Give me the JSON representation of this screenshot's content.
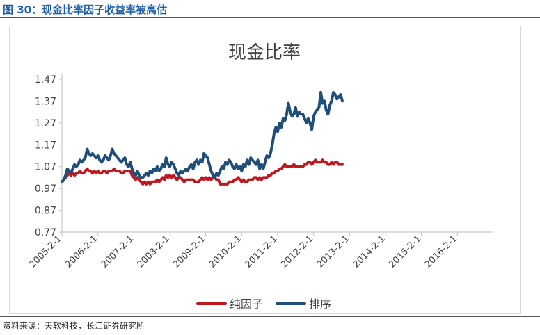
{
  "figure_title": "图 30：现金比率因子收益率被高估",
  "source": "资料来源：天软科技，长江证券研究所",
  "colors": {
    "accent": "#1f5ea8",
    "series_red": "#c0161e",
    "series_blue": "#1f4e79",
    "axis": "#bfbfbf"
  },
  "chart_data": {
    "type": "line",
    "title": "现金比率",
    "xlabel": "",
    "ylabel": "",
    "ylim": [
      0.77,
      1.47
    ],
    "y_ticks": [
      "1.47",
      "1.37",
      "1.27",
      "1.17",
      "1.07",
      "0.97",
      "0.87",
      "0.77"
    ],
    "x_ticks": [
      "2005-2-1",
      "2006-2-1",
      "2007-2-1",
      "2008-2-1",
      "2009-2-1",
      "2010-2-1",
      "2011-2-1",
      "2012-2-1",
      "2013-2-1",
      "2014-2-1",
      "2015-2-1",
      "2016-2-1"
    ],
    "x_start_label": "2005-2-1",
    "grid": false,
    "legend_position": "bottom",
    "series": [
      {
        "name": "纯因子",
        "color": "#c0161e",
        "points": [
          [
            0.0,
            1.0
          ],
          [
            0.05,
            1.01
          ],
          [
            0.1,
            1.02
          ],
          [
            0.15,
            1.03
          ],
          [
            0.2,
            1.04
          ],
          [
            0.25,
            1.03
          ],
          [
            0.3,
            1.04
          ],
          [
            0.35,
            1.03
          ],
          [
            0.4,
            1.04
          ],
          [
            0.45,
            1.04
          ],
          [
            0.5,
            1.05
          ],
          [
            0.55,
            1.04
          ],
          [
            0.6,
            1.04
          ],
          [
            0.65,
            1.05
          ],
          [
            0.7,
            1.06
          ],
          [
            0.75,
            1.05
          ],
          [
            0.8,
            1.05
          ],
          [
            0.85,
            1.04
          ],
          [
            0.9,
            1.05
          ],
          [
            0.95,
            1.04
          ],
          [
            1.0,
            1.05
          ],
          [
            1.05,
            1.04
          ],
          [
            1.1,
            1.04
          ],
          [
            1.15,
            1.05
          ],
          [
            1.2,
            1.05
          ],
          [
            1.25,
            1.04
          ],
          [
            1.3,
            1.05
          ],
          [
            1.35,
            1.05
          ],
          [
            1.4,
            1.05
          ],
          [
            1.45,
            1.06
          ],
          [
            1.5,
            1.05
          ],
          [
            1.55,
            1.05
          ],
          [
            1.6,
            1.05
          ],
          [
            1.65,
            1.04
          ],
          [
            1.7,
            1.04
          ],
          [
            1.75,
            1.05
          ],
          [
            1.8,
            1.05
          ],
          [
            1.85,
            1.05
          ],
          [
            1.9,
            1.05
          ],
          [
            1.95,
            1.03
          ],
          [
            2.0,
            1.02
          ],
          [
            2.05,
            1.01
          ],
          [
            2.1,
            1.02
          ],
          [
            2.15,
            1.01
          ],
          [
            2.2,
            1.0
          ],
          [
            2.25,
            0.99
          ],
          [
            2.3,
            1.0
          ],
          [
            2.35,
            0.99
          ],
          [
            2.4,
            1.0
          ],
          [
            2.45,
            0.99
          ],
          [
            2.5,
            1.0
          ],
          [
            2.55,
            1.0
          ],
          [
            2.6,
            1.0
          ],
          [
            2.65,
            1.01
          ],
          [
            2.7,
            1.0
          ],
          [
            2.75,
            1.01
          ],
          [
            2.8,
            1.02
          ],
          [
            2.85,
            1.01
          ],
          [
            2.9,
            1.03
          ],
          [
            2.95,
            1.02
          ],
          [
            3.0,
            1.03
          ],
          [
            3.05,
            1.02
          ],
          [
            3.1,
            1.03
          ],
          [
            3.15,
            1.02
          ],
          [
            3.2,
            1.01
          ],
          [
            3.25,
            1.02
          ],
          [
            3.3,
            1.02
          ],
          [
            3.35,
            1.01
          ],
          [
            3.4,
            1.0
          ],
          [
            3.45,
            1.01
          ],
          [
            3.5,
            1.01
          ],
          [
            3.55,
            1.01
          ],
          [
            3.6,
            1.01
          ],
          [
            3.65,
            1.01
          ],
          [
            3.7,
            1.0
          ],
          [
            3.75,
            1.0
          ],
          [
            3.8,
            1.0
          ],
          [
            3.85,
            1.01
          ],
          [
            3.9,
            1.02
          ],
          [
            3.95,
            1.01
          ],
          [
            4.0,
            1.02
          ],
          [
            4.05,
            1.01
          ],
          [
            4.1,
            1.02
          ],
          [
            4.15,
            1.01
          ],
          [
            4.2,
            1.02
          ],
          [
            4.25,
            1.02
          ],
          [
            4.3,
            1.01
          ],
          [
            4.35,
            1.01
          ],
          [
            4.4,
            0.99
          ],
          [
            4.45,
            0.99
          ],
          [
            4.5,
            0.99
          ],
          [
            4.55,
            0.99
          ],
          [
            4.6,
            0.99
          ],
          [
            4.65,
            1.0
          ],
          [
            4.7,
            1.0
          ],
          [
            4.75,
            1.0
          ],
          [
            4.8,
            1.01
          ],
          [
            4.85,
            1.01
          ],
          [
            4.9,
            1.02
          ],
          [
            4.95,
            1.01
          ],
          [
            5.0,
            1.0
          ],
          [
            5.05,
            1.01
          ],
          [
            5.1,
            1.0
          ],
          [
            5.15,
            1.0
          ],
          [
            5.2,
            1.01
          ],
          [
            5.25,
            1.01
          ],
          [
            5.3,
            1.01
          ],
          [
            5.35,
            1.02
          ],
          [
            5.4,
            1.02
          ],
          [
            5.45,
            1.01
          ],
          [
            5.5,
            1.02
          ],
          [
            5.55,
            1.01
          ],
          [
            5.6,
            1.02
          ],
          [
            5.65,
            1.02
          ],
          [
            5.7,
            1.02
          ],
          [
            5.75,
            1.03
          ],
          [
            5.8,
            1.03
          ],
          [
            5.85,
            1.04
          ],
          [
            5.9,
            1.04
          ],
          [
            5.95,
            1.05
          ],
          [
            6.0,
            1.05
          ],
          [
            6.05,
            1.06
          ],
          [
            6.1,
            1.06
          ],
          [
            6.15,
            1.07
          ],
          [
            6.2,
            1.08
          ],
          [
            6.25,
            1.07
          ],
          [
            6.3,
            1.07
          ],
          [
            6.35,
            1.07
          ],
          [
            6.4,
            1.07
          ],
          [
            6.45,
            1.08
          ],
          [
            6.5,
            1.07
          ],
          [
            6.55,
            1.07
          ],
          [
            6.6,
            1.07
          ],
          [
            6.65,
            1.07
          ],
          [
            6.7,
            1.07
          ],
          [
            6.75,
            1.08
          ],
          [
            6.8,
            1.08
          ],
          [
            6.85,
            1.09
          ],
          [
            6.9,
            1.09
          ],
          [
            6.95,
            1.08
          ],
          [
            7.0,
            1.09
          ],
          [
            7.05,
            1.1
          ],
          [
            7.1,
            1.09
          ],
          [
            7.15,
            1.09
          ],
          [
            7.2,
            1.09
          ],
          [
            7.25,
            1.1
          ],
          [
            7.3,
            1.09
          ],
          [
            7.35,
            1.09
          ],
          [
            7.4,
            1.08
          ],
          [
            7.45,
            1.08
          ],
          [
            7.5,
            1.09
          ],
          [
            7.55,
            1.08
          ],
          [
            7.6,
            1.09
          ],
          [
            7.65,
            1.09
          ],
          [
            7.7,
            1.08
          ],
          [
            7.75,
            1.08
          ],
          [
            7.8,
            1.08
          ]
        ]
      },
      {
        "name": "排序",
        "color": "#1f4e79",
        "points": [
          [
            0.0,
            1.0
          ],
          [
            0.05,
            1.01
          ],
          [
            0.1,
            1.03
          ],
          [
            0.15,
            1.06
          ],
          [
            0.2,
            1.05
          ],
          [
            0.25,
            1.04
          ],
          [
            0.3,
            1.06
          ],
          [
            0.35,
            1.08
          ],
          [
            0.4,
            1.07
          ],
          [
            0.45,
            1.08
          ],
          [
            0.5,
            1.1
          ],
          [
            0.55,
            1.09
          ],
          [
            0.6,
            1.1
          ],
          [
            0.65,
            1.11
          ],
          [
            0.7,
            1.15
          ],
          [
            0.75,
            1.13
          ],
          [
            0.8,
            1.12
          ],
          [
            0.85,
            1.13
          ],
          [
            0.9,
            1.12
          ],
          [
            0.95,
            1.11
          ],
          [
            1.0,
            1.12
          ],
          [
            1.05,
            1.1
          ],
          [
            1.1,
            1.09
          ],
          [
            1.15,
            1.1
          ],
          [
            1.2,
            1.12
          ],
          [
            1.25,
            1.11
          ],
          [
            1.3,
            1.1
          ],
          [
            1.35,
            1.12
          ],
          [
            1.4,
            1.15
          ],
          [
            1.45,
            1.13
          ],
          [
            1.5,
            1.12
          ],
          [
            1.55,
            1.11
          ],
          [
            1.6,
            1.1
          ],
          [
            1.65,
            1.09
          ],
          [
            1.7,
            1.1
          ],
          [
            1.75,
            1.11
          ],
          [
            1.8,
            1.08
          ],
          [
            1.85,
            1.07
          ],
          [
            1.9,
            1.09
          ],
          [
            1.95,
            1.06
          ],
          [
            2.0,
            1.04
          ],
          [
            2.05,
            1.03
          ],
          [
            2.1,
            1.05
          ],
          [
            2.15,
            1.03
          ],
          [
            2.2,
            1.02
          ],
          [
            2.25,
            1.02
          ],
          [
            2.3,
            1.03
          ],
          [
            2.35,
            1.04
          ],
          [
            2.4,
            1.03
          ],
          [
            2.45,
            1.05
          ],
          [
            2.5,
            1.04
          ],
          [
            2.55,
            1.06
          ],
          [
            2.6,
            1.05
          ],
          [
            2.65,
            1.07
          ],
          [
            2.7,
            1.05
          ],
          [
            2.75,
            1.06
          ],
          [
            2.8,
            1.08
          ],
          [
            2.85,
            1.07
          ],
          [
            2.9,
            1.11
          ],
          [
            2.95,
            1.08
          ],
          [
            3.0,
            1.07
          ],
          [
            3.05,
            1.09
          ],
          [
            3.1,
            1.08
          ],
          [
            3.15,
            1.06
          ],
          [
            3.2,
            1.04
          ],
          [
            3.25,
            1.03
          ],
          [
            3.3,
            1.05
          ],
          [
            3.35,
            1.04
          ],
          [
            3.4,
            1.05
          ],
          [
            3.45,
            1.06
          ],
          [
            3.5,
            1.05
          ],
          [
            3.55,
            1.07
          ],
          [
            3.6,
            1.08
          ],
          [
            3.65,
            1.06
          ],
          [
            3.7,
            1.09
          ],
          [
            3.75,
            1.1
          ],
          [
            3.8,
            1.08
          ],
          [
            3.85,
            1.1
          ],
          [
            3.9,
            1.09
          ],
          [
            3.95,
            1.13
          ],
          [
            4.0,
            1.12
          ],
          [
            4.05,
            1.11
          ],
          [
            4.1,
            1.08
          ],
          [
            4.15,
            1.05
          ],
          [
            4.2,
            1.03
          ],
          [
            4.25,
            1.02
          ],
          [
            4.3,
            1.04
          ],
          [
            4.35,
            1.03
          ],
          [
            4.4,
            1.05
          ],
          [
            4.45,
            1.07
          ],
          [
            4.5,
            1.06
          ],
          [
            4.55,
            1.09
          ],
          [
            4.6,
            1.08
          ],
          [
            4.65,
            1.1
          ],
          [
            4.7,
            1.09
          ],
          [
            4.75,
            1.07
          ],
          [
            4.8,
            1.06
          ],
          [
            4.85,
            1.08
          ],
          [
            4.9,
            1.06
          ],
          [
            4.95,
            1.07
          ],
          [
            5.0,
            1.05
          ],
          [
            5.05,
            1.08
          ],
          [
            5.1,
            1.07
          ],
          [
            5.15,
            1.1
          ],
          [
            5.2,
            1.08
          ],
          [
            5.25,
            1.11
          ],
          [
            5.3,
            1.1
          ],
          [
            5.35,
            1.09
          ],
          [
            5.4,
            1.08
          ],
          [
            5.45,
            1.1
          ],
          [
            5.5,
            1.06
          ],
          [
            5.55,
            1.08
          ],
          [
            5.6,
            1.06
          ],
          [
            5.65,
            1.09
          ],
          [
            5.7,
            1.12
          ],
          [
            5.75,
            1.11
          ],
          [
            5.8,
            1.13
          ],
          [
            5.85,
            1.17
          ],
          [
            5.9,
            1.22
          ],
          [
            5.95,
            1.25
          ],
          [
            6.0,
            1.23
          ],
          [
            6.05,
            1.27
          ],
          [
            6.1,
            1.25
          ],
          [
            6.15,
            1.29
          ],
          [
            6.2,
            1.28
          ],
          [
            6.25,
            1.31
          ],
          [
            6.3,
            1.36
          ],
          [
            6.35,
            1.32
          ],
          [
            6.4,
            1.3
          ],
          [
            6.45,
            1.31
          ],
          [
            6.5,
            1.34
          ],
          [
            6.55,
            1.3
          ],
          [
            6.6,
            1.32
          ],
          [
            6.65,
            1.31
          ],
          [
            6.7,
            1.31
          ],
          [
            6.75,
            1.29
          ],
          [
            6.8,
            1.27
          ],
          [
            6.85,
            1.29
          ],
          [
            6.9,
            1.27
          ],
          [
            6.95,
            1.24
          ],
          [
            7.0,
            1.3
          ],
          [
            7.05,
            1.32
          ],
          [
            7.1,
            1.33
          ],
          [
            7.15,
            1.34
          ],
          [
            7.2,
            1.41
          ],
          [
            7.25,
            1.36
          ],
          [
            7.3,
            1.37
          ],
          [
            7.35,
            1.33
          ],
          [
            7.4,
            1.31
          ],
          [
            7.45,
            1.35
          ],
          [
            7.5,
            1.37
          ],
          [
            7.55,
            1.41
          ],
          [
            7.6,
            1.4
          ],
          [
            7.65,
            1.38
          ],
          [
            7.7,
            1.39
          ],
          [
            7.75,
            1.4
          ],
          [
            7.8,
            1.37
          ]
        ]
      }
    ]
  }
}
